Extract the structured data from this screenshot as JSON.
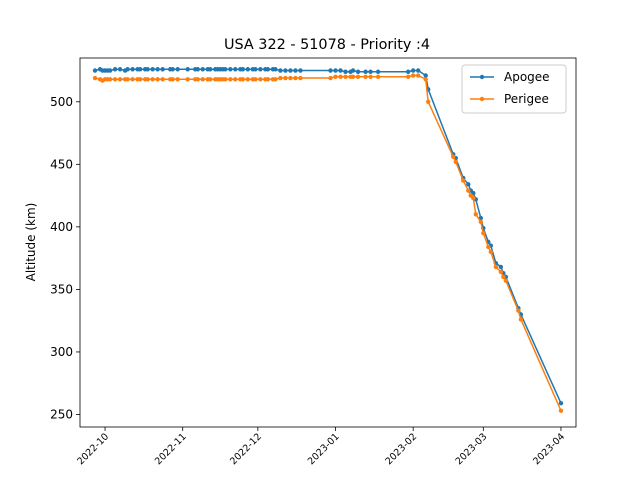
{
  "chart_data": {
    "type": "line",
    "title": "USA 322 - 51078 - Priority :4",
    "xlabel": "",
    "ylabel": "Altitude (km)",
    "xlim": [
      "2022-09-21",
      "2023-04-07"
    ],
    "ylim": [
      240,
      535
    ],
    "yticks": [
      250,
      300,
      350,
      400,
      450,
      500
    ],
    "xticks": [
      "2022-10-01",
      "2022-11-01",
      "2022-12-01",
      "2023-01-01",
      "2023-02-01",
      "2023-03-01",
      "2023-04-01"
    ],
    "xtick_labels": [
      "2022-10",
      "2022-11",
      "2022-12",
      "2023-01",
      "2023-02",
      "2023-03",
      "2023-04"
    ],
    "legend_position": "upper right",
    "grid": false,
    "series": [
      {
        "name": "Apogee",
        "color": "#1f77b4",
        "x": [
          "2022-09-27",
          "2022-09-29",
          "2022-09-30",
          "2022-10-01",
          "2022-10-02",
          "2022-10-03",
          "2022-10-05",
          "2022-10-07",
          "2022-10-09",
          "2022-10-10",
          "2022-10-12",
          "2022-10-14",
          "2022-10-15",
          "2022-10-17",
          "2022-10-18",
          "2022-10-20",
          "2022-10-22",
          "2022-10-24",
          "2022-10-27",
          "2022-10-28",
          "2022-10-30",
          "2022-11-03",
          "2022-11-06",
          "2022-11-07",
          "2022-11-09",
          "2022-11-11",
          "2022-11-12",
          "2022-11-14",
          "2022-11-15",
          "2022-11-16",
          "2022-11-17",
          "2022-11-18",
          "2022-11-20",
          "2022-11-22",
          "2022-11-24",
          "2022-11-25",
          "2022-11-27",
          "2022-11-29",
          "2022-11-30",
          "2022-12-02",
          "2022-12-04",
          "2022-12-05",
          "2022-12-07",
          "2022-12-08",
          "2022-12-10",
          "2022-12-12",
          "2022-12-14",
          "2022-12-16",
          "2022-12-18",
          "2022-12-30",
          "2023-01-01",
          "2023-01-03",
          "2023-01-05",
          "2023-01-07",
          "2023-01-08",
          "2023-01-10",
          "2023-01-13",
          "2023-01-15",
          "2023-01-18",
          "2023-01-30",
          "2023-02-01",
          "2023-02-03",
          "2023-02-06",
          "2023-02-07",
          "2023-02-17",
          "2023-02-18",
          "2023-02-21",
          "2023-02-23",
          "2023-02-24",
          "2023-02-25",
          "2023-02-26",
          "2023-02-28",
          "2023-03-01",
          "2023-03-03",
          "2023-03-04",
          "2023-03-06",
          "2023-03-08",
          "2023-03-09",
          "2023-03-10",
          "2023-03-15",
          "2023-03-16",
          "2023-04-01"
        ],
        "y": [
          525,
          526,
          525,
          525,
          525,
          525,
          526,
          526,
          525,
          526,
          526,
          526,
          526,
          526,
          526,
          526,
          526,
          526,
          526,
          526,
          526,
          526,
          526,
          526,
          526,
          526,
          526,
          526,
          526,
          526,
          526,
          526,
          526,
          526,
          526,
          526,
          526,
          526,
          526,
          526,
          526,
          526,
          526,
          526,
          525,
          525,
          525,
          525,
          525,
          525,
          525,
          525,
          524,
          524,
          525,
          524,
          524,
          524,
          524,
          524,
          525,
          525,
          521,
          510,
          458,
          455,
          439,
          434,
          429,
          427,
          422,
          407,
          399,
          388,
          385,
          371,
          368,
          363,
          360,
          335,
          330,
          259
        ]
      },
      {
        "name": "Perigee",
        "color": "#ff7f0e",
        "x": [
          "2022-09-27",
          "2022-09-29",
          "2022-09-30",
          "2022-10-01",
          "2022-10-02",
          "2022-10-03",
          "2022-10-05",
          "2022-10-07",
          "2022-10-09",
          "2022-10-10",
          "2022-10-12",
          "2022-10-14",
          "2022-10-15",
          "2022-10-17",
          "2022-10-18",
          "2022-10-20",
          "2022-10-22",
          "2022-10-24",
          "2022-10-27",
          "2022-10-28",
          "2022-10-30",
          "2022-11-03",
          "2022-11-06",
          "2022-11-07",
          "2022-11-09",
          "2022-11-11",
          "2022-11-12",
          "2022-11-14",
          "2022-11-15",
          "2022-11-16",
          "2022-11-17",
          "2022-11-18",
          "2022-11-20",
          "2022-11-22",
          "2022-11-24",
          "2022-11-25",
          "2022-11-27",
          "2022-11-29",
          "2022-11-30",
          "2022-12-02",
          "2022-12-04",
          "2022-12-05",
          "2022-12-07",
          "2022-12-08",
          "2022-12-10",
          "2022-12-12",
          "2022-12-14",
          "2022-12-16",
          "2022-12-18",
          "2022-12-30",
          "2023-01-01",
          "2023-01-03",
          "2023-01-05",
          "2023-01-07",
          "2023-01-08",
          "2023-01-10",
          "2023-01-13",
          "2023-01-15",
          "2023-01-18",
          "2023-01-30",
          "2023-02-01",
          "2023-02-03",
          "2023-02-06",
          "2023-02-07",
          "2023-02-17",
          "2023-02-18",
          "2023-02-21",
          "2023-02-23",
          "2023-02-24",
          "2023-02-25",
          "2023-02-26",
          "2023-02-28",
          "2023-03-01",
          "2023-03-03",
          "2023-03-04",
          "2023-03-06",
          "2023-03-08",
          "2023-03-09",
          "2023-03-10",
          "2023-03-15",
          "2023-03-16",
          "2023-04-01"
        ],
        "y": [
          519,
          518,
          517,
          518,
          518,
          518,
          518,
          518,
          518,
          518,
          518,
          518,
          518,
          518,
          518,
          518,
          518,
          518,
          518,
          518,
          518,
          518,
          518,
          518,
          518,
          518,
          518,
          518,
          518,
          518,
          518,
          518,
          518,
          518,
          518,
          518,
          518,
          518,
          518,
          518,
          518,
          518,
          518,
          518,
          519,
          519,
          519,
          519,
          519,
          519,
          520,
          520,
          520,
          520,
          520,
          520,
          520,
          520,
          520,
          520,
          521,
          521,
          518,
          500,
          456,
          452,
          437,
          429,
          425,
          423,
          410,
          404,
          395,
          384,
          380,
          368,
          364,
          360,
          357,
          333,
          326,
          253
        ]
      }
    ]
  }
}
